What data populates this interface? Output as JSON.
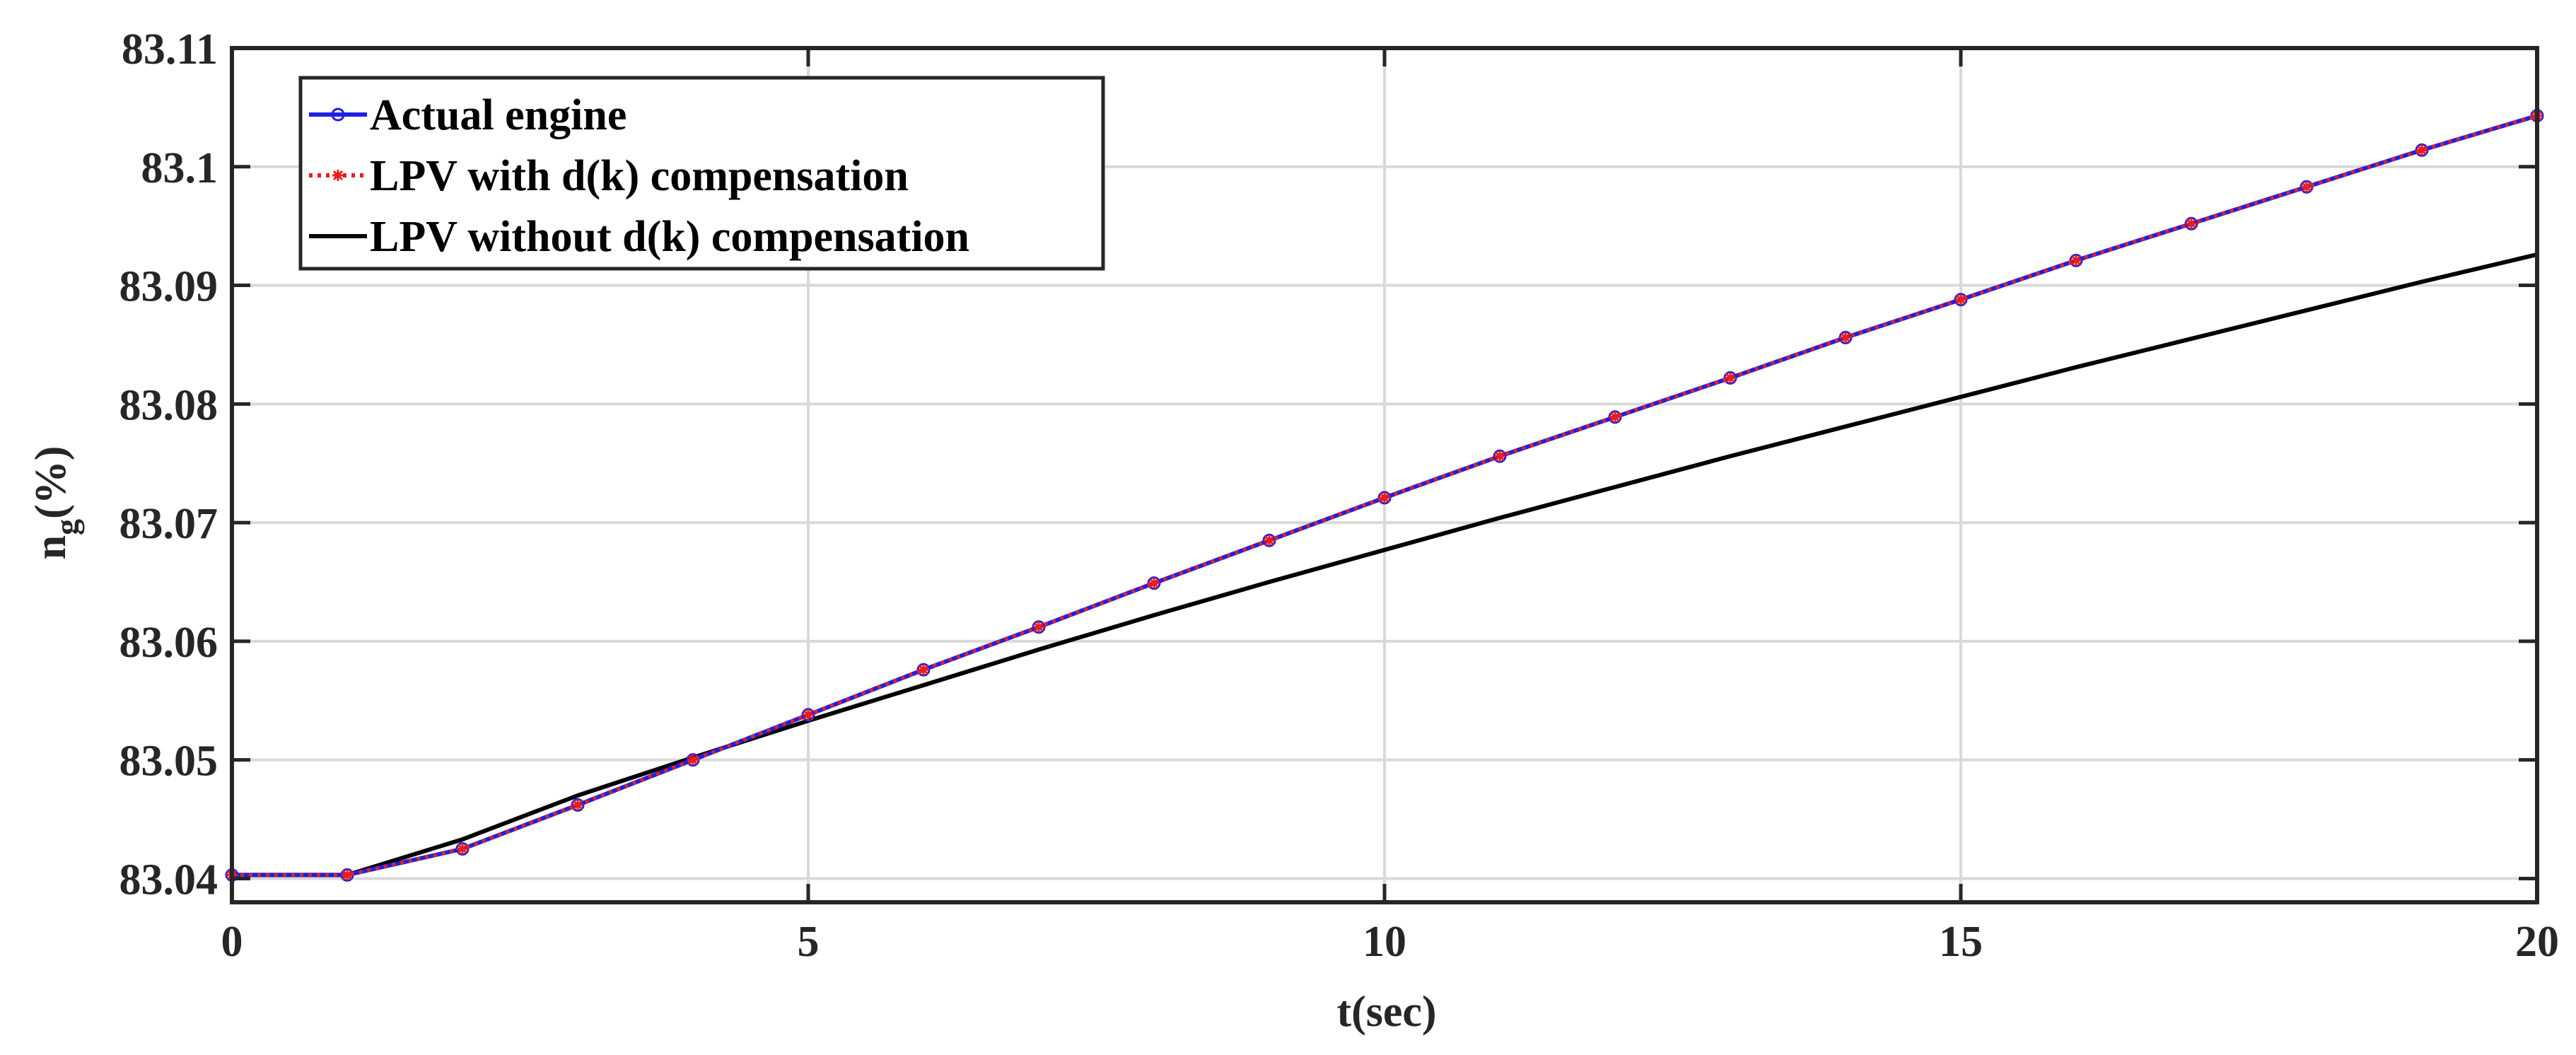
{
  "chart_data": {
    "type": "line",
    "title": "",
    "xlabel": "t(sec)",
    "ylabel": {
      "main": "n",
      "subscript": "g",
      "suffix": "(%)"
    },
    "xlim": [
      0,
      20
    ],
    "ylim": [
      83.038,
      83.11
    ],
    "xticks": [
      0,
      5,
      10,
      15,
      20
    ],
    "xtick_labels": [
      "0",
      "5",
      "10",
      "15",
      "20"
    ],
    "yticks": [
      83.04,
      83.05,
      83.06,
      83.07,
      83.08,
      83.09,
      83.1,
      83.11
    ],
    "ytick_labels": [
      "83.04",
      "83.05",
      "83.06",
      "83.07",
      "83.08",
      "83.09",
      "83.1",
      "83.11"
    ],
    "grid": true,
    "legend_position": "top-left",
    "x": [
      0,
      1,
      2,
      3,
      4,
      5,
      6,
      7,
      8,
      9,
      10,
      11,
      12,
      13,
      14,
      15,
      16,
      17,
      18,
      19,
      20
    ],
    "series": [
      {
        "name": "Actual engine",
        "color": "#1f1fe6",
        "style": "solid",
        "marker": "circle",
        "values": [
          83.0403,
          83.0403,
          83.0425,
          83.0462,
          83.05,
          83.0538,
          83.0576,
          83.0612,
          83.0649,
          83.0685,
          83.0721,
          83.0756,
          83.0789,
          83.0822,
          83.0856,
          83.0888,
          83.0921,
          83.0952,
          83.0983,
          83.1014,
          83.1043
        ]
      },
      {
        "name": "LPV with d(k) compensation",
        "color": "#e61f1f",
        "style": "dotted",
        "marker": "star",
        "values": [
          83.0403,
          83.0403,
          83.0425,
          83.0462,
          83.05,
          83.0538,
          83.0576,
          83.0612,
          83.0649,
          83.0685,
          83.0721,
          83.0756,
          83.0789,
          83.0822,
          83.0856,
          83.0888,
          83.0921,
          83.0952,
          83.0983,
          83.1014,
          83.1043
        ]
      },
      {
        "name": "LPV without d(k) compensation",
        "color": "#000000",
        "style": "solid",
        "marker": "none",
        "values": [
          83.0403,
          83.0403,
          83.0433,
          83.047,
          83.0502,
          83.0533,
          83.0563,
          83.0593,
          83.0622,
          83.065,
          83.0677,
          83.0704,
          83.073,
          83.0756,
          83.0781,
          83.0806,
          83.0831,
          83.0855,
          83.0879,
          83.0903,
          83.0926
        ]
      }
    ]
  }
}
